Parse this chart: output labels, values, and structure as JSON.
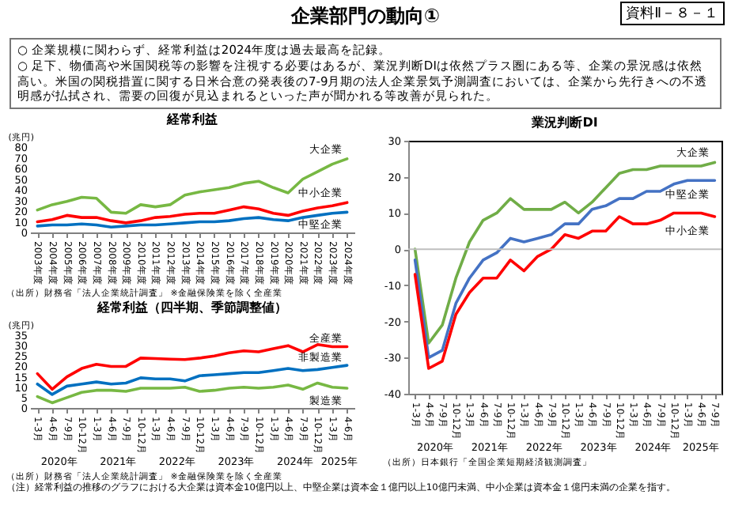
{
  "chart_data": [
    {
      "type": "other",
      "title": "企業部門の動向①",
      "subtitle": "資料Ⅱ－８－１",
      "annotations": [
        "○ 企業規模に関わらず、経常利益は2024年度は過去最高を記録。",
        "○ 足下、物価高や米国関税等の影響を注視する必要はあるが、業況判断DIは依然プラス圏にある等、企業の景況感は依然高い。米国の関税措置に関する日米合意の発表後の7-9月期の法人企業景気予測調査においては、企業から先行きへの不透明感が払拭され、需要の回復が見込まれるといった声が聞かれる等改善が見られた。"
      ]
    },
    {
      "type": "line",
      "title": "経常利益",
      "ylabel": "(兆円)",
      "categories": [
        "2003年度",
        "2004年度",
        "2005年度",
        "2006年度",
        "2007年度",
        "2008年度",
        "2009年度",
        "2010年度",
        "2011年度",
        "2012年度",
        "2013年度",
        "2014年度",
        "2015年度",
        "2016年度",
        "2017年度",
        "2018年度",
        "2019年度",
        "2020年度",
        "2021年度",
        "2022年度",
        "2023年度",
        "2024年度"
      ],
      "ylim": [
        0,
        80
      ],
      "yticks": [
        0,
        10,
        20,
        30,
        40,
        50,
        60,
        70,
        80
      ],
      "series": [
        {
          "name": "大企業",
          "color": "#77b843",
          "values": [
            21,
            26,
            29,
            33,
            32,
            19,
            18,
            26,
            24,
            26,
            35,
            38,
            40,
            42,
            46,
            48,
            42,
            37,
            50,
            57,
            64,
            69
          ]
        },
        {
          "name": "中小企業",
          "color": "#ff0000",
          "values": [
            10,
            12,
            16,
            14,
            14,
            11,
            9,
            11,
            14,
            15,
            17,
            18,
            18,
            21,
            24,
            22,
            18,
            16,
            20,
            23,
            25,
            28
          ]
        },
        {
          "name": "中堅企業",
          "color": "#0070c0",
          "values": [
            6,
            7,
            7,
            8,
            7,
            5,
            6,
            7,
            7,
            8,
            9,
            10,
            10,
            11,
            13,
            14,
            12,
            11,
            14,
            16,
            18,
            19
          ]
        }
      ],
      "annotations": [
        "（出所）財務省「法人企業統計調査」 ※金融保険業を除く全産業",
        "（注）経常利益の推移のグラフにおける大企業は資本金10億円以上、中堅企業は資本金１億円以上10億円未満、中小企業は資本金１億円未満の企業を指す。"
      ]
    },
    {
      "type": "line",
      "title": "経常利益（四半期、季節調整値）",
      "ylabel": "(兆円)",
      "categories": [
        "1-3月",
        "4-6月",
        "7-9月",
        "10-12月",
        "1-3月",
        "4-6月",
        "7-9月",
        "10-12月",
        "1-3月",
        "4-6月",
        "7-9月",
        "10-12月",
        "1-3月",
        "4-6月",
        "7-9月",
        "10-12月",
        "1-3月",
        "4-6月",
        "7-9月",
        "10-12月",
        "1-3月",
        "4-6月"
      ],
      "ylim": [
        0,
        35
      ],
      "yticks": [
        0,
        5,
        10,
        15,
        20,
        25,
        30,
        35
      ],
      "series": [
        {
          "name": "全産業",
          "color": "#ff0000",
          "values": [
            16.5,
            9,
            15,
            19,
            21,
            20,
            20,
            24,
            23.8,
            23.5,
            23.3,
            24,
            25,
            26.5,
            27.5,
            27,
            28.5,
            30,
            27,
            30.5,
            29.5,
            29.5
          ]
        },
        {
          "name": "非製造業",
          "color": "#0070c0",
          "values": [
            11.5,
            6.5,
            10.5,
            11.5,
            12.5,
            11.5,
            12,
            14.5,
            14,
            14,
            13,
            15.5,
            16,
            16.5,
            17,
            17,
            18,
            19,
            18,
            18.5,
            19.5,
            20.5
          ]
        },
        {
          "name": "製造業",
          "color": "#77b843",
          "values": [
            5.5,
            2.5,
            5,
            7.5,
            8.5,
            8.5,
            8,
            9.5,
            9.5,
            9.5,
            10,
            8,
            8.5,
            9.5,
            10,
            9.5,
            10,
            11,
            9,
            12,
            10,
            9.5
          ]
        }
      ],
      "annotations": [
        "（出所）財務省「法人企業統計調査」 ※金融保険業を除く全産業",
        "2020年",
        "2021年",
        "2022年",
        "2023年",
        "2024年",
        "2025年"
      ]
    },
    {
      "type": "line",
      "title": "業況判断DI",
      "categories": [
        "1-3月",
        "4-6月",
        "7-9月",
        "10-12月",
        "1-3月",
        "4-6月",
        "7-9月",
        "10-12月",
        "1-3月",
        "4-6月",
        "7-9月",
        "10-12月",
        "1-3月",
        "4-6月",
        "7-9月",
        "10-12月",
        "1-3月",
        "4-6月",
        "7-9月",
        "10-12月",
        "1-3月",
        "4-6月",
        "7-9月"
      ],
      "ylim": [
        -40,
        30
      ],
      "yticks": [
        -40,
        -30,
        -20,
        -10,
        0,
        10,
        20,
        30
      ],
      "series": [
        {
          "name": "大企業",
          "color": "#70ad47",
          "values": [
            0,
            -26,
            -21,
            -8,
            2,
            8,
            10,
            14,
            11,
            11,
            11,
            13,
            10,
            13,
            17,
            21,
            22,
            22,
            23,
            23,
            23,
            23,
            24
          ]
        },
        {
          "name": "中堅企業",
          "color": "#4472c4",
          "values": [
            -3,
            -30,
            -28,
            -15,
            -8,
            -3,
            -1,
            3,
            2,
            3,
            4,
            7,
            7,
            11,
            12,
            14,
            14,
            16,
            16,
            18,
            19,
            19,
            19
          ]
        },
        {
          "name": "中小企業",
          "color": "#ff0000",
          "values": [
            -7,
            -33,
            -31,
            -18,
            -12,
            -8,
            -8,
            -3,
            -6,
            -2,
            0,
            4,
            3,
            5,
            5,
            9,
            7,
            7,
            8,
            10,
            10,
            10,
            9
          ]
        }
      ],
      "ref_lines": [
        {
          "axis": "y",
          "value": 0,
          "color": "#bfbfbf"
        }
      ],
      "annotations": [
        "（出所）日本銀行「全国企業短期経済観測調査」",
        "2020年",
        "2021年",
        "2022年",
        "2023年",
        "2024年",
        "2025年"
      ]
    }
  ]
}
